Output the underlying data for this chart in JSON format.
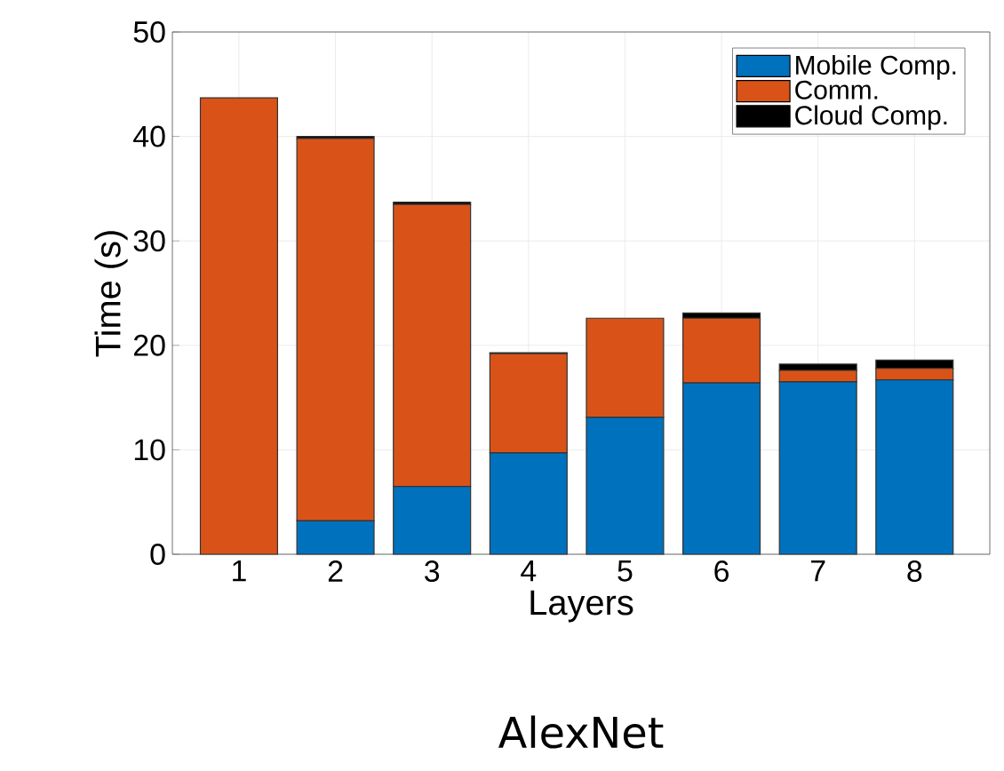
{
  "chart_data": {
    "type": "bar",
    "stacked": true,
    "title": "AlexNet",
    "xlabel": "Layers",
    "ylabel": "Time (s)",
    "categories": [
      "1",
      "2",
      "3",
      "4",
      "5",
      "6",
      "7",
      "8"
    ],
    "series": [
      {
        "name": "Mobile Comp.",
        "color": "#0072bd",
        "values": [
          0,
          3.2,
          6.5,
          9.7,
          13.1,
          16.4,
          16.5,
          16.7
        ]
      },
      {
        "name": "Comm.",
        "color": "#d95319",
        "values": [
          43.7,
          36.6,
          27.0,
          9.5,
          9.5,
          6.2,
          1.1,
          1.1
        ]
      },
      {
        "name": "Cloud Comp.",
        "color": "#000000",
        "values": [
          0,
          0.2,
          0.2,
          0.1,
          0,
          0.5,
          0.6,
          0.8
        ]
      }
    ],
    "ylim": [
      0,
      50
    ],
    "yticks": [
      0,
      10,
      20,
      30,
      40,
      50
    ],
    "grid": true,
    "legend": "top right"
  }
}
